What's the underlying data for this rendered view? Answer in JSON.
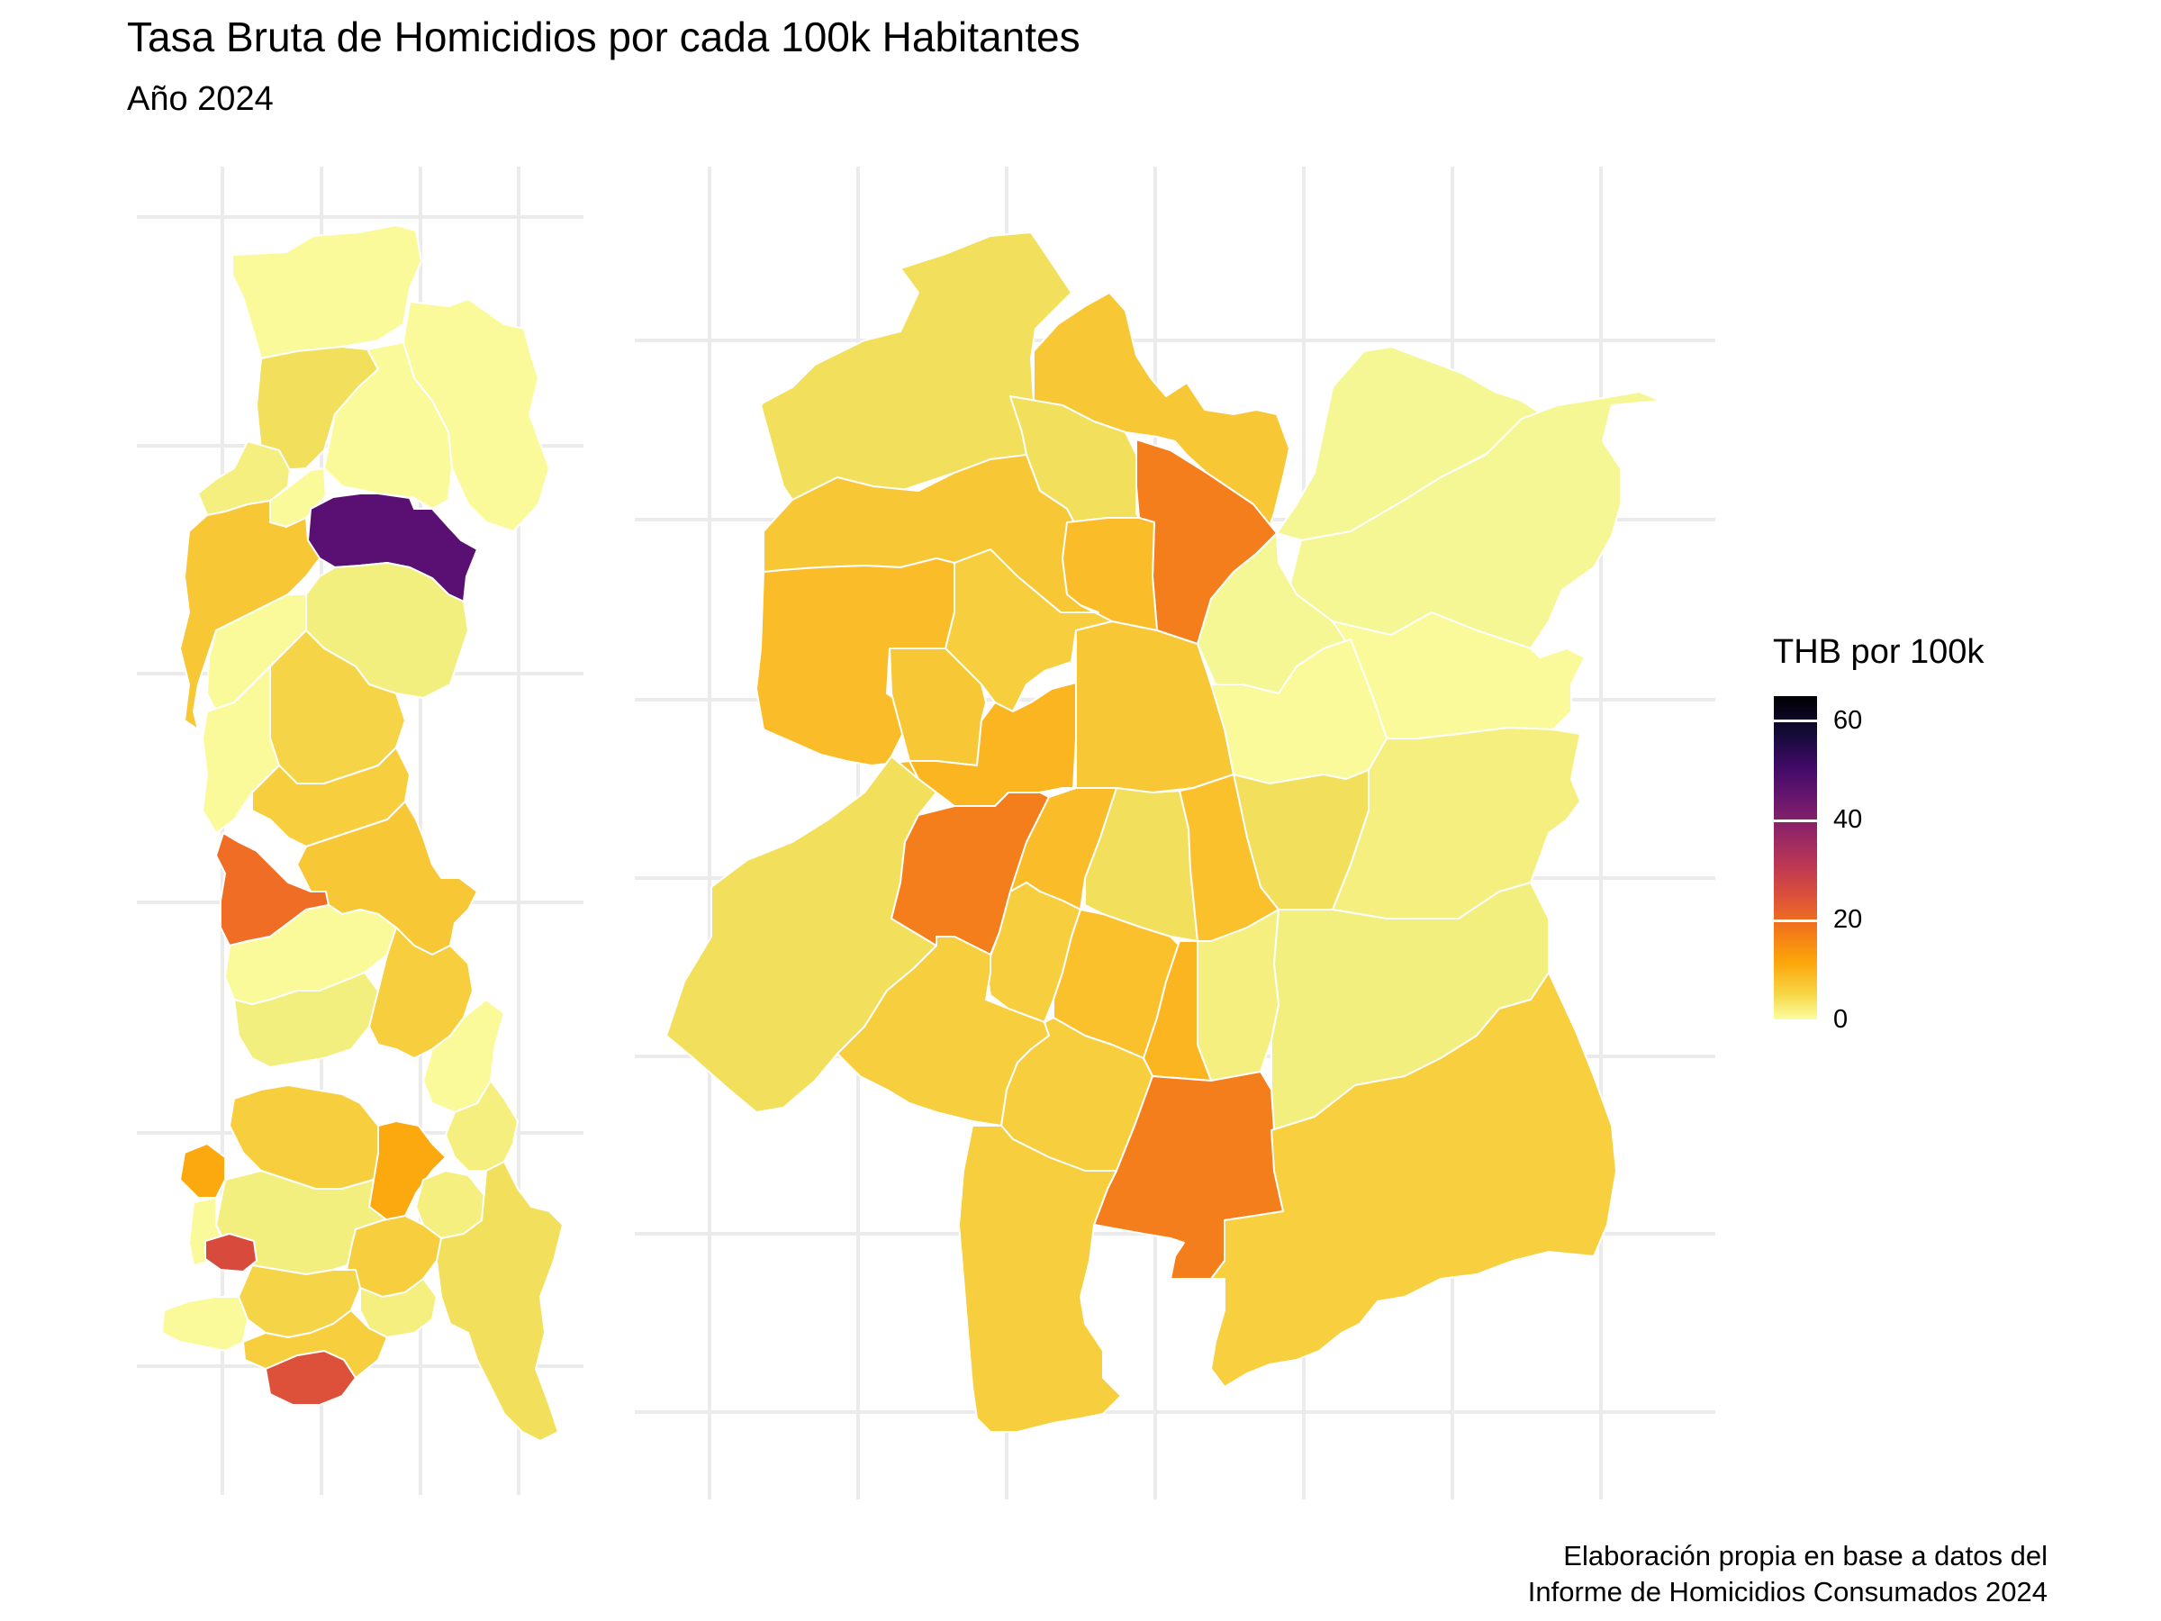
{
  "title": "Tasa Bruta de Homicidios por cada 100k Habitantes",
  "subtitle": "Año 2024",
  "caption": {
    "line1": "Elaboración propia en base a datos del",
    "line2": "Informe de Homicidios Consumados 2024"
  },
  "legend": {
    "title": "THB por 100k",
    "ticks": [
      {
        "value": 0,
        "label": "0"
      },
      {
        "value": 20,
        "label": "20"
      },
      {
        "value": 40,
        "label": "40"
      },
      {
        "value": 60,
        "label": "60"
      }
    ],
    "range": [
      0,
      65
    ],
    "palette": "inferno",
    "colors": {
      "low": "#fcffa4",
      "mid": "#fca50a",
      "high_mid": "#bc3754",
      "high": "#000004"
    }
  },
  "map": {
    "panels": [
      "region",
      "urban-zoom"
    ],
    "grid": true,
    "border_color": "#ffffff",
    "gridline_color": "#ebebeb"
  }
}
